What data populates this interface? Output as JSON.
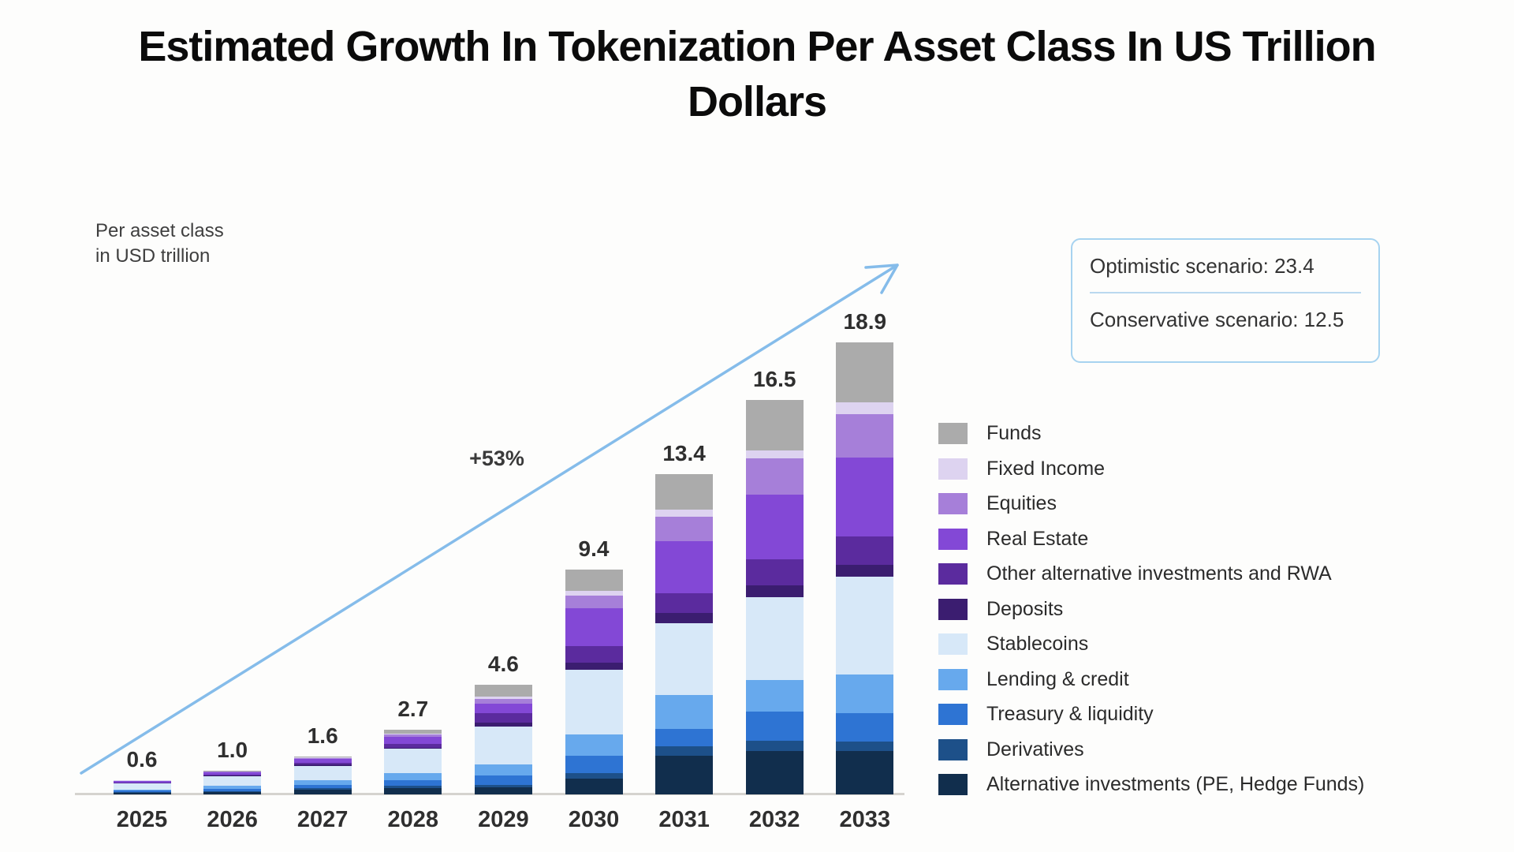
{
  "title": {
    "line1": "Estimated Growth In Tokenization Per Asset Class In US Trillion",
    "line2": "Dollars",
    "full": "Estimated Growth In Tokenization Per Asset Class In US Trillion Dollars"
  },
  "axis_note": {
    "line1": "Per asset class",
    "line2": "in USD trillion"
  },
  "growth_label": "+53%",
  "scenario_box": {
    "optimistic": "Optimistic scenario: 23.4",
    "conservative": "Conservative scenario: 12.5"
  },
  "colors": {
    "arrow": "#85BCEA",
    "scenario_border": "#A7D3F0",
    "scenario_divider": "#BAD9EF",
    "axis_line": "#D5D3CF",
    "title_text": "#0B0B0B",
    "label_text": "#2F2F2F"
  },
  "chart_data": {
    "type": "bar",
    "stacked": true,
    "title": "Estimated Growth In Tokenization Per Asset Class In US Trillion Dollars",
    "xlabel": "",
    "ylabel": "Per asset class in USD trillion",
    "ylim": [
      0,
      20
    ],
    "grid": false,
    "legend_position": "right",
    "annotations": [
      "+53%",
      "Optimistic scenario: 23.4",
      "Conservative scenario: 12.5"
    ],
    "categories": [
      "2025",
      "2026",
      "2027",
      "2028",
      "2029",
      "2030",
      "2031",
      "2032",
      "2033"
    ],
    "totals": [
      0.6,
      1.0,
      1.6,
      2.7,
      4.6,
      9.4,
      13.4,
      16.5,
      18.9
    ],
    "series": [
      {
        "name": "Funds",
        "color": "#ABABAB",
        "values": [
          0.02,
          0.03,
          0.06,
          0.15,
          0.5,
          0.9,
          1.5,
          2.1,
          2.5
        ]
      },
      {
        "name": "Fixed Income",
        "color": "#DDD3F0",
        "values": [
          0.01,
          0.01,
          0.02,
          0.05,
          0.1,
          0.2,
          0.3,
          0.35,
          0.5
        ]
      },
      {
        "name": "Equities",
        "color": "#A67FD9",
        "values": [
          0.02,
          0.03,
          0.05,
          0.1,
          0.2,
          0.5,
          1.0,
          1.5,
          1.8
        ]
      },
      {
        "name": "Real Estate",
        "color": "#8348D6",
        "values": [
          0.05,
          0.1,
          0.15,
          0.3,
          0.4,
          1.6,
          2.2,
          2.7,
          3.3
        ]
      },
      {
        "name": "Other alternative investments and RWA",
        "color": "#5B2B9E",
        "values": [
          0.03,
          0.05,
          0.08,
          0.15,
          0.4,
          0.7,
          0.8,
          1.1,
          1.2
        ]
      },
      {
        "name": "Deposits",
        "color": "#3B1D70",
        "values": [
          0.01,
          0.02,
          0.04,
          0.05,
          0.15,
          0.3,
          0.45,
          0.5,
          0.5
        ]
      },
      {
        "name": "Stablecoins",
        "color": "#D7E8F8",
        "values": [
          0.25,
          0.4,
          0.6,
          1.0,
          1.6,
          2.7,
          3.0,
          3.45,
          4.1
        ]
      },
      {
        "name": "Lending & credit",
        "color": "#67A9ED",
        "values": [
          0.06,
          0.12,
          0.2,
          0.3,
          0.45,
          0.9,
          1.4,
          1.35,
          1.6
        ]
      },
      {
        "name": "Treasury & liquidity",
        "color": "#2E74D3",
        "values": [
          0.06,
          0.1,
          0.15,
          0.25,
          0.4,
          0.7,
          0.75,
          1.2,
          1.2
        ]
      },
      {
        "name": "Derivatives",
        "color": "#1D5089",
        "values": [
          0.02,
          0.04,
          0.05,
          0.1,
          0.1,
          0.25,
          0.4,
          0.45,
          0.4
        ]
      },
      {
        "name": "Alternative investments (PE, Hedge Funds)",
        "color": "#112E4D",
        "values": [
          0.07,
          0.1,
          0.2,
          0.25,
          0.3,
          0.65,
          1.6,
          1.8,
          1.8
        ]
      }
    ]
  }
}
